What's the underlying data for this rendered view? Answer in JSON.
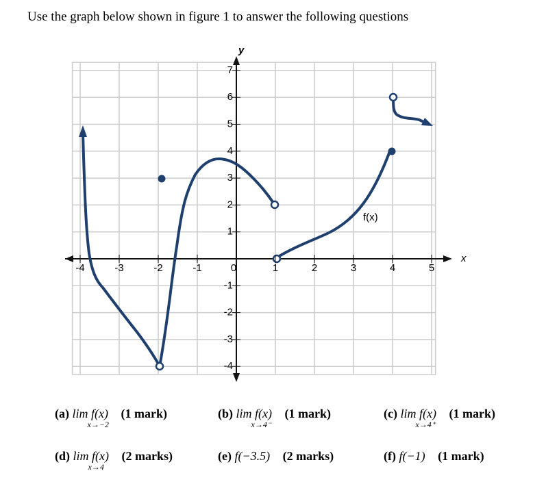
{
  "instruction": "Use the graph below shown in figure 1 to answer the following questions",
  "graph": {
    "x_label": "x",
    "y_label": "y",
    "curve_label": "f(x)",
    "x_ticks": [
      "-4",
      "-3",
      "-2",
      "-1",
      "0",
      "1",
      "2",
      "3",
      "4",
      "5"
    ],
    "y_ticks": [
      "7",
      "6",
      "5",
      "4",
      "3",
      "2",
      "1",
      "-1",
      "-2",
      "-3",
      "-4"
    ]
  },
  "questions": [
    {
      "label": "(a)",
      "expr": "lim f(x)",
      "sub": "x→−2",
      "marks": "(1 mark)"
    },
    {
      "label": "(b)",
      "expr": "lim f(x)",
      "sub": "x→4⁻",
      "marks": "(1 mark)"
    },
    {
      "label": "(c)",
      "expr": "lim f(x)",
      "sub": "x→4⁺",
      "marks": "(1 mark)"
    },
    {
      "label": "(d)",
      "expr": "lim f(x)",
      "sub": "x→4",
      "marks": "(2 marks)"
    },
    {
      "label": "(e)",
      "expr": "f(−3.5)",
      "marks": "(2 marks)"
    },
    {
      "label": "(f)",
      "expr": "f(−1)",
      "marks": "(1 mark)"
    }
  ]
}
